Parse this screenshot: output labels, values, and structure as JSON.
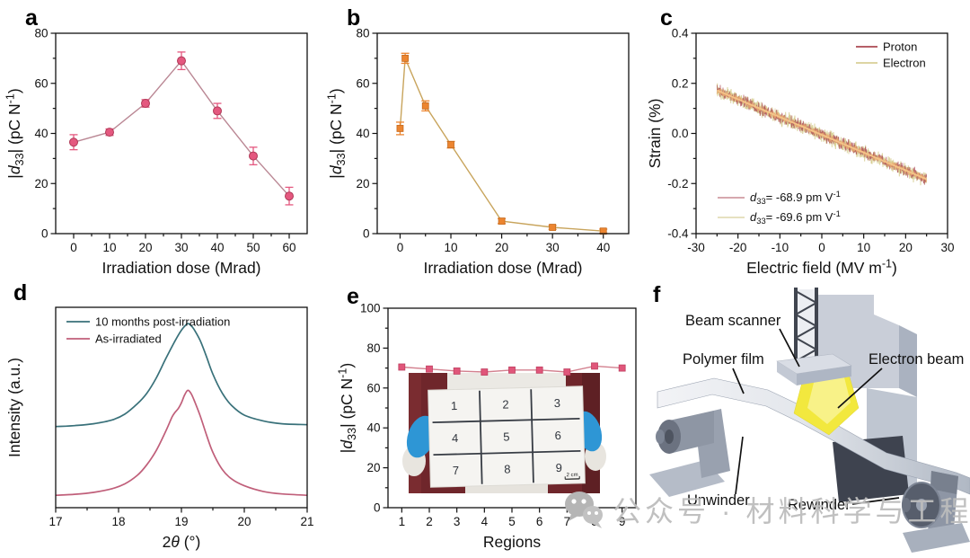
{
  "panels": {
    "a": {
      "letter": "a"
    },
    "b": {
      "letter": "b"
    },
    "c": {
      "letter": "c"
    },
    "d": {
      "letter": "d"
    },
    "e": {
      "letter": "e"
    },
    "f": {
      "letter": "f"
    }
  },
  "watermark": {
    "text": "公众号 · 材料科学与工程",
    "icon": "wechat-icon",
    "color": "#bdbdbd"
  },
  "chart_data": [
    {
      "panel": "a",
      "type": "line",
      "x": [
        0,
        10,
        20,
        30,
        40,
        50,
        60
      ],
      "values": [
        36.5,
        40.5,
        52,
        69,
        49,
        31,
        15
      ],
      "errors": [
        3,
        1.3,
        1.5,
        3.5,
        3,
        3.5,
        3.5
      ],
      "marker": "circle",
      "color_marker": "#e4587f",
      "color_marker_edge": "#b03a58",
      "color_line": "#ba8794",
      "xlabel": [
        {
          "t": "Irradiation dose (Mrad)"
        }
      ],
      "ylabel": [
        {
          "t": "|"
        },
        {
          "t": "d",
          "s": "i"
        },
        {
          "t": "33",
          "s": "sub"
        },
        {
          "t": "| (pC N"
        },
        {
          "t": "-1",
          "s": "sup"
        },
        {
          "t": ")"
        }
      ],
      "xlim": [
        -5,
        65
      ],
      "ylim": [
        0,
        80
      ],
      "xticks": [
        0,
        10,
        20,
        30,
        40,
        50,
        60
      ],
      "xtick_labels": [
        "0",
        "10",
        "20",
        "30",
        "40",
        "50",
        "60"
      ],
      "yticks": [
        0,
        20,
        40,
        60,
        80
      ],
      "ytick_labels": [
        "0",
        "20",
        "40",
        "60",
        "80"
      ],
      "layout": {
        "minor_x": true,
        "minor_y": true,
        "grid": false
      }
    },
    {
      "panel": "b",
      "type": "line",
      "x": [
        0,
        1,
        5,
        10,
        20,
        30,
        40
      ],
      "values": [
        42,
        70,
        51,
        35.5,
        5,
        2.5,
        1
      ],
      "errors": [
        2.5,
        2,
        2,
        1.3,
        1,
        0.8,
        0.8
      ],
      "marker": "square",
      "color_marker": "#ec8530",
      "color_marker_edge": "#c56a1e",
      "color_line": "#c8a45c",
      "xlabel": [
        {
          "t": "Irradiation dose (Mrad)"
        }
      ],
      "ylabel": [
        {
          "t": "|"
        },
        {
          "t": "d",
          "s": "i"
        },
        {
          "t": "33",
          "s": "sub"
        },
        {
          "t": "| (pC N"
        },
        {
          "t": "-1",
          "s": "sup"
        },
        {
          "t": ")"
        }
      ],
      "xlim": [
        -4.5,
        45
      ],
      "ylim": [
        0,
        80
      ],
      "xticks": [
        0,
        10,
        20,
        30,
        40
      ],
      "xtick_labels": [
        "0",
        "10",
        "20",
        "30",
        "40"
      ],
      "yticks": [
        0,
        20,
        40,
        60,
        80
      ],
      "ytick_labels": [
        "0",
        "20",
        "40",
        "60",
        "80"
      ],
      "layout": {
        "minor_x": true,
        "minor_y": true,
        "grid": false
      }
    },
    {
      "panel": "c",
      "type": "noisy-line",
      "noise": {
        "x_range": [
          -25,
          25
        ],
        "strain_start": 0.172,
        "strain_end": -0.183,
        "amp_electron": 0.037,
        "amp_proton": 0.03
      },
      "fit_color": "#f4c489",
      "legend": {
        "position": "top-right",
        "items": [
          {
            "label": "Proton",
            "color": "#ab4852"
          },
          {
            "label": "Electron",
            "color": "#d8cf96"
          }
        ]
      },
      "annotations": [
        {
          "color": "#c98b94",
          "segments": [
            {
              "t": "d",
              "s": "i"
            },
            {
              "t": "33",
              "s": "sub"
            },
            {
              "t": "= -68.9 pm V"
            },
            {
              "t": "-1",
              "s": "sup"
            }
          ]
        },
        {
          "color": "#ddd7ab",
          "segments": [
            {
              "t": "d",
              "s": "i"
            },
            {
              "t": "33",
              "s": "sub"
            },
            {
              "t": "= -69.6 pm V"
            },
            {
              "t": "-1",
              "s": "sup"
            }
          ]
        }
      ],
      "xlabel": [
        {
          "t": "Electric field (MV m"
        },
        {
          "t": "-1",
          "s": "sup"
        },
        {
          "t": ")"
        }
      ],
      "ylabel": [
        {
          "t": "Strain (%)"
        }
      ],
      "xlim": [
        -30,
        30
      ],
      "ylim": [
        -0.4,
        0.4
      ],
      "xticks": [
        -30,
        -20,
        -10,
        0,
        10,
        20,
        30
      ],
      "xtick_labels": [
        "-30",
        "-20",
        "-10",
        "0",
        "10",
        "20",
        "30"
      ],
      "yticks": [
        -0.4,
        -0.2,
        0,
        0.2,
        0.4
      ],
      "ytick_labels": [
        "-0.4",
        "-0.2",
        "0.0",
        "0.2",
        "0.4"
      ],
      "layout": {
        "minor_x": true,
        "minor_y": true,
        "grid": false
      }
    },
    {
      "panel": "d",
      "type": "multi-line",
      "series": [
        {
          "name": "10 months post-irradiation",
          "color": "#39717a",
          "x": [
            17,
            17.3,
            17.6,
            17.9,
            18.1,
            18.3,
            18.45,
            18.6,
            18.75,
            18.9,
            19.0,
            19.05,
            19.1,
            19.15,
            19.2,
            19.3,
            19.4,
            19.5,
            19.65,
            19.8,
            20.0,
            20.3,
            20.6,
            21.0
          ],
          "values": [
            0.425,
            0.43,
            0.44,
            0.46,
            0.49,
            0.545,
            0.6,
            0.68,
            0.78,
            0.875,
            0.93,
            0.95,
            0.965,
            0.955,
            0.935,
            0.875,
            0.79,
            0.7,
            0.6,
            0.535,
            0.485,
            0.455,
            0.44,
            0.435
          ]
        },
        {
          "name": "As-irradiated",
          "color": "#c05f7a",
          "x": [
            17,
            17.3,
            17.6,
            17.9,
            18.1,
            18.3,
            18.45,
            18.6,
            18.75,
            18.85,
            18.9,
            18.95,
            19.0,
            19.05,
            19.1,
            19.15,
            19.2,
            19.3,
            19.4,
            19.5,
            19.65,
            19.8,
            20.0,
            20.3,
            20.6,
            21.0
          ],
          "values": [
            0.065,
            0.07,
            0.08,
            0.1,
            0.125,
            0.17,
            0.225,
            0.3,
            0.4,
            0.475,
            0.5,
            0.52,
            0.55,
            0.59,
            0.615,
            0.6,
            0.565,
            0.48,
            0.38,
            0.29,
            0.2,
            0.15,
            0.115,
            0.085,
            0.072,
            0.065
          ]
        }
      ],
      "legend": {
        "position": "top-left"
      },
      "xlabel": [
        {
          "t": "2"
        },
        {
          "t": "θ",
          "s": "i"
        },
        {
          "t": " (°)"
        }
      ],
      "ylabel": [
        {
          "t": "Intensity (a.u.)"
        }
      ],
      "xlim": [
        17,
        21
      ],
      "ylim": [
        0,
        1.05
      ],
      "xticks": [
        17,
        18,
        19,
        20,
        21
      ],
      "xtick_labels": [
        "17",
        "18",
        "19",
        "20",
        "21"
      ],
      "yticks": [],
      "ytick_labels": [],
      "layout": {
        "minor_x": true,
        "minor_y": false,
        "grid": false
      }
    },
    {
      "panel": "e",
      "type": "line",
      "x": [
        1,
        2,
        3,
        4,
        5,
        6,
        7,
        8,
        9
      ],
      "values": [
        70.5,
        69.5,
        68.5,
        68,
        69,
        69,
        68,
        71,
        70
      ],
      "marker": "square",
      "color_marker": "#e0567a",
      "color_marker_edge": "#bf3f60",
      "color_line": "#d3818f",
      "xlabel": [
        {
          "t": "Regions"
        }
      ],
      "ylabel": [
        {
          "t": "|"
        },
        {
          "t": "d",
          "s": "i"
        },
        {
          "t": "33",
          "s": "sub"
        },
        {
          "t": "| (pC N"
        },
        {
          "t": "-1",
          "s": "sup"
        },
        {
          "t": ")"
        }
      ],
      "xlim": [
        0.5,
        9.5
      ],
      "ylim": [
        0,
        100
      ],
      "xticks": [
        1,
        2,
        3,
        4,
        5,
        6,
        7,
        8,
        9
      ],
      "xtick_labels": [
        "1",
        "2",
        "3",
        "4",
        "5",
        "6",
        "7",
        "8",
        "9"
      ],
      "yticks": [
        0,
        20,
        40,
        60,
        80,
        100
      ],
      "ytick_labels": [
        "0",
        "20",
        "40",
        "60",
        "80",
        "100"
      ],
      "layout": {
        "minor_x": false,
        "minor_y": true,
        "grid": false
      },
      "inset": {
        "grid_numbers": [
          "1",
          "2",
          "3",
          "4",
          "5",
          "6",
          "7",
          "8",
          "9"
        ],
        "scale_bar": "2 cm"
      }
    }
  ],
  "diagram_f": {
    "labels": [
      {
        "text": "Beam scanner"
      },
      {
        "text": "Polymer film"
      },
      {
        "text": "Electron beam"
      },
      {
        "text": "Unwinder"
      },
      {
        "text": "Rewinder"
      }
    ]
  }
}
